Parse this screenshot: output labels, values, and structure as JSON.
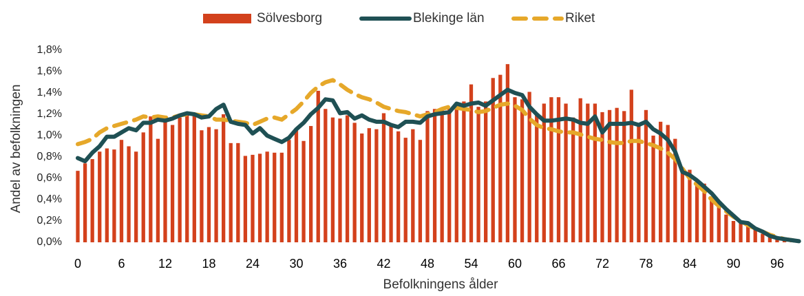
{
  "chart_data": {
    "type": "bar_line",
    "x_label": "Befolkningens ålder",
    "y_label": "Andel av befolkningen",
    "categories": [
      "0",
      null,
      null,
      null,
      null,
      null,
      "6",
      null,
      null,
      null,
      null,
      null,
      "12",
      null,
      null,
      null,
      null,
      null,
      "18",
      null,
      null,
      null,
      null,
      null,
      "24",
      null,
      null,
      null,
      null,
      null,
      "30",
      null,
      null,
      null,
      null,
      null,
      "36",
      null,
      null,
      null,
      null,
      null,
      "42",
      null,
      null,
      null,
      null,
      null,
      "48",
      null,
      null,
      null,
      null,
      null,
      "54",
      null,
      null,
      null,
      null,
      null,
      "60",
      null,
      null,
      null,
      null,
      null,
      "66",
      null,
      null,
      null,
      null,
      null,
      "72",
      null,
      null,
      null,
      null,
      null,
      "78",
      null,
      null,
      null,
      null,
      null,
      "84",
      null,
      null,
      null,
      null,
      null,
      "90",
      null,
      null,
      null,
      null,
      null,
      "96",
      null,
      null,
      null
    ],
    "ylim": [
      0,
      1.8
    ],
    "yticks": [
      {
        "value": 0,
        "label": "0,0%"
      },
      {
        "value": 0.2,
        "label": "0,2%"
      },
      {
        "value": 0.4,
        "label": "0,4%"
      },
      {
        "value": 0.6,
        "label": "0,6%"
      },
      {
        "value": 0.8,
        "label": "0,8%"
      },
      {
        "value": 1.0,
        "label": "1,0%"
      },
      {
        "value": 1.2,
        "label": "1,2%"
      },
      {
        "value": 1.4,
        "label": "1,4%"
      },
      {
        "value": 1.6,
        "label": "1,6%"
      },
      {
        "value": 1.8,
        "label": "1,8%"
      }
    ],
    "legend": "top",
    "series": [
      {
        "name": "Sölvesborg",
        "kind": "bar",
        "color": "#d3411c",
        "values": [
          0.67,
          0.74,
          0.78,
          0.85,
          0.88,
          0.87,
          0.96,
          0.9,
          0.85,
          1.03,
          1.18,
          0.97,
          1.17,
          1.1,
          1.17,
          1.2,
          1.19,
          1.05,
          1.08,
          1.06,
          1.2,
          0.93,
          0.93,
          0.81,
          0.82,
          0.83,
          0.85,
          0.84,
          0.84,
          0.96,
          1.05,
          0.95,
          1.09,
          1.42,
          1.25,
          1.17,
          1.16,
          1.19,
          1.12,
          1.02,
          1.07,
          1.06,
          1.21,
          1.09,
          1.04,
          0.98,
          1.06,
          0.96,
          1.23,
          1.25,
          1.26,
          1.25,
          1.28,
          1.32,
          1.48,
          1.27,
          1.32,
          1.54,
          1.57,
          1.67,
          1.36,
          1.34,
          1.41,
          1.2,
          1.3,
          1.36,
          1.36,
          1.3,
          1.17,
          1.35,
          1.3,
          1.3,
          1.22,
          1.24,
          1.26,
          1.23,
          1.43,
          1.1,
          1.24,
          1.0,
          1.13,
          1.1,
          0.97,
          0.67,
          0.68,
          0.58,
          0.55,
          0.42,
          0.35,
          0.26,
          0.2,
          0.18,
          0.17,
          0.12,
          0.08,
          0.06,
          0.05,
          0.03,
          0.02,
          0.01
        ]
      },
      {
        "name": "Blekinge län",
        "kind": "line",
        "color": "#1f5054",
        "values": [
          0.79,
          0.76,
          0.84,
          0.9,
          0.99,
          0.99,
          1.03,
          1.07,
          1.05,
          1.12,
          1.12,
          1.15,
          1.14,
          1.16,
          1.19,
          1.21,
          1.2,
          1.17,
          1.18,
          1.25,
          1.29,
          1.13,
          1.11,
          1.1,
          1.02,
          1.07,
          1.0,
          0.97,
          0.94,
          0.98,
          1.06,
          1.12,
          1.2,
          1.26,
          1.34,
          1.33,
          1.21,
          1.22,
          1.16,
          1.19,
          1.15,
          1.13,
          1.13,
          1.1,
          1.08,
          1.13,
          1.13,
          1.12,
          1.18,
          1.2,
          1.21,
          1.22,
          1.3,
          1.28,
          1.3,
          1.31,
          1.28,
          1.33,
          1.38,
          1.43,
          1.4,
          1.38,
          1.27,
          1.2,
          1.14,
          1.14,
          1.15,
          1.16,
          1.15,
          1.12,
          1.11,
          1.18,
          1.03,
          1.11,
          1.11,
          1.11,
          1.12,
          1.1,
          1.13,
          1.06,
          1.02,
          0.96,
          0.85,
          0.66,
          0.63,
          0.58,
          0.52,
          0.46,
          0.38,
          0.31,
          0.25,
          0.19,
          0.18,
          0.13,
          0.1,
          0.06,
          0.04,
          0.03,
          0.02,
          0.01
        ]
      },
      {
        "name": "Riket",
        "kind": "dashed",
        "color": "#e6a82a",
        "values": [
          0.92,
          0.94,
          0.97,
          1.03,
          1.07,
          1.09,
          1.11,
          1.13,
          1.15,
          1.18,
          1.17,
          1.18,
          1.17,
          1.17,
          1.19,
          1.2,
          1.2,
          1.19,
          1.18,
          1.15,
          1.15,
          1.14,
          1.13,
          1.12,
          1.1,
          1.13,
          1.16,
          1.17,
          1.15,
          1.2,
          1.25,
          1.32,
          1.4,
          1.46,
          1.5,
          1.52,
          1.48,
          1.43,
          1.39,
          1.36,
          1.34,
          1.31,
          1.27,
          1.25,
          1.23,
          1.22,
          1.2,
          1.18,
          1.2,
          1.22,
          1.25,
          1.27,
          1.26,
          1.25,
          1.24,
          1.22,
          1.23,
          1.26,
          1.29,
          1.3,
          1.28,
          1.24,
          1.16,
          1.1,
          1.07,
          1.06,
          1.04,
          1.03,
          1.03,
          1.01,
          0.99,
          0.97,
          0.96,
          0.94,
          0.93,
          0.93,
          0.95,
          0.95,
          0.93,
          0.91,
          0.88,
          0.84,
          0.78,
          0.69,
          0.6,
          0.54,
          0.48,
          0.4,
          0.34,
          0.29,
          0.24,
          0.2,
          0.16,
          0.13,
          0.1,
          0.07,
          0.05,
          0.03,
          0.02,
          0.01
        ]
      }
    ]
  }
}
